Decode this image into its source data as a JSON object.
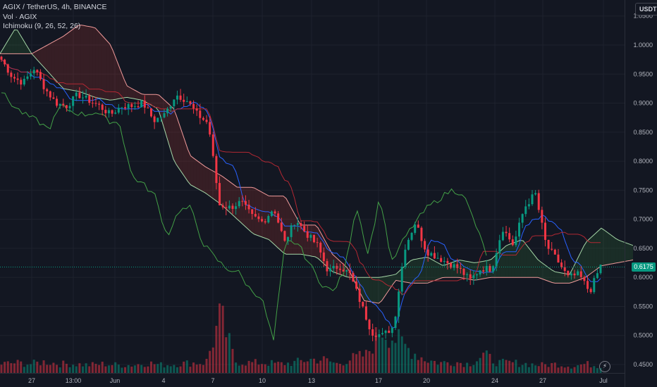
{
  "legend": {
    "symbol": "AGIX / TetherUS, 4h, BINANCE",
    "volume": "Vol · AGIX",
    "indicator": "Ichimoku (9, 26, 52, 26)"
  },
  "currency_label": "USDT",
  "last_price_label": "0.6175",
  "goto_icon": "lightning-icon",
  "colors": {
    "background": "#131722",
    "up": "#089981",
    "down": "#f23645",
    "conversion": "#2962ff",
    "base": "#b22833",
    "lagging": "#43a047",
    "lead_a": "#a5d6a7",
    "lead_b": "#ef9a9a",
    "grid": "#1e222d",
    "text": "#b2b5be"
  },
  "chart_data": {
    "type": "candlestick",
    "y_ticks": [
      "0.4500",
      "0.5000",
      "0.5500",
      "0.6000",
      "0.6500",
      "0.7000",
      "0.7500",
      "0.8000",
      "0.8500",
      "0.9000",
      "0.9500",
      "1.0000",
      "1.0500"
    ],
    "ylim": [
      0.44,
      1.06
    ],
    "x_ticks": [
      "27",
      "13:00",
      "Jun",
      "4",
      "7",
      "10",
      "13",
      "17",
      "20",
      "24",
      "27",
      "Jul"
    ],
    "price_keypoints": [
      0.975,
      0.945,
      0.935,
      0.96,
      0.925,
      0.9,
      0.895,
      0.915,
      0.905,
      0.895,
      0.88,
      0.895,
      0.895,
      0.9,
      0.87,
      0.88,
      0.915,
      0.905,
      0.88,
      0.865,
      0.725,
      0.72,
      0.73,
      0.705,
      0.695,
      0.72,
      0.66,
      0.7,
      0.675,
      0.655,
      0.61,
      0.62,
      0.605,
      0.555,
      0.505,
      0.5,
      0.515,
      0.65,
      0.695,
      0.645,
      0.635,
      0.625,
      0.615,
      0.595,
      0.615,
      0.615,
      0.685,
      0.655,
      0.72,
      0.745,
      0.655,
      0.63,
      0.6,
      0.605,
      0.575,
      0.62
    ],
    "lagging_keypoints": [
      0.92,
      0.895,
      0.88,
      0.87,
      0.855,
      0.895,
      0.885,
      0.88,
      0.885,
      0.87,
      0.865,
      0.775,
      0.76,
      0.74,
      0.67,
      0.715,
      0.72,
      0.66,
      0.635,
      0.615,
      0.61,
      0.58,
      0.565,
      0.49,
      0.66,
      0.66,
      0.625,
      0.59,
      0.575,
      0.61,
      0.725,
      0.64,
      0.74,
      0.625,
      0.665,
      0.695,
      0.72,
      0.735,
      0.75,
      0.745,
      0.695,
      0.64
    ],
    "lead_a_keypoints": [
      0.985,
      1.03,
      0.985,
      0.955,
      0.925,
      0.92,
      0.91,
      0.905,
      0.91,
      0.905,
      0.89,
      0.8,
      0.76,
      0.745,
      0.725,
      0.7,
      0.675,
      0.665,
      0.64,
      0.64,
      0.635,
      0.61,
      0.6,
      0.6,
      0.6,
      0.605,
      0.63,
      0.635,
      0.62,
      0.63,
      0.625,
      0.63,
      0.655,
      0.665,
      0.63,
      0.61,
      0.605,
      0.66,
      0.685,
      0.665,
      0.655
    ],
    "lead_b_keypoints": [
      0.985,
      0.985,
      0.985,
      1.0,
      1.015,
      1.035,
      1.03,
      1.0,
      0.93,
      0.915,
      0.915,
      0.89,
      0.81,
      0.79,
      0.775,
      0.755,
      0.755,
      0.74,
      0.74,
      0.69,
      0.69,
      0.64,
      0.615,
      0.56,
      0.555,
      0.595,
      0.59,
      0.59,
      0.6,
      0.6,
      0.595,
      0.6,
      0.6,
      0.6,
      0.6,
      0.59,
      0.59,
      0.6,
      0.62,
      0.625,
      0.63
    ],
    "volume_keypoints": [
      0.8,
      0.9,
      0.8,
      1.0,
      0.8,
      0.8,
      0.7,
      0.8,
      0.7,
      0.7,
      0.9,
      0.7,
      0.8,
      0.9,
      0.9,
      5.0,
      1.0,
      0.9,
      0.9,
      0.8,
      0.9,
      1.2,
      1.2,
      0.8,
      1.3,
      1.6,
      4.0,
      3.0,
      2.0,
      1.2,
      0.9,
      1.0,
      0.8,
      1.6,
      0.9,
      0.9,
      0.8,
      0.7,
      0.8,
      0.6,
      0.8,
      0.6
    ]
  }
}
